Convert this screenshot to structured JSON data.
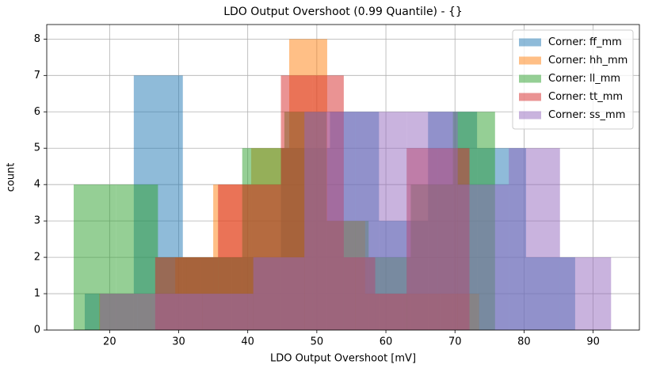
{
  "chart_data": {
    "type": "histogram",
    "title": "LDO Output Overshoot (0.99 Quantile) - {}",
    "xlabel": "LDO Output Overshoot [mV]",
    "ylabel": "count",
    "xlim": [
      10.9,
      96.7
    ],
    "ylim": [
      0,
      8.4
    ],
    "xticks": [
      20,
      30,
      40,
      50,
      60,
      70,
      80,
      90
    ],
    "yticks": [
      0,
      1,
      2,
      3,
      4,
      5,
      6,
      7,
      8
    ],
    "grid": true,
    "opacity": 0.5,
    "legend": "upper-right",
    "series": [
      {
        "name": "Corner: ff_mm",
        "color": "#1f77b4",
        "bins": [
          16.4,
          23.5,
          30.6,
          37.7,
          44.8,
          51.9,
          59.0,
          66.1,
          73.2,
          80.3,
          87.4
        ],
        "values": [
          1,
          7,
          2,
          2,
          5,
          6,
          3,
          6,
          5,
          2
        ]
      },
      {
        "name": "Corner: hh_mm",
        "color": "#ff7f0e",
        "bins": [
          18.5,
          24.0,
          29.5,
          35.0,
          40.5,
          46.0,
          51.5,
          57.0,
          62.5,
          68.0,
          73.5
        ],
        "values": [
          1,
          1,
          2,
          4,
          5,
          8,
          3,
          1,
          1,
          1
        ]
      },
      {
        "name": "Corner: ll_mm",
        "color": "#2ca02c",
        "bins": [
          14.8,
          20.9,
          27.0,
          33.1,
          39.2,
          45.3,
          51.4,
          57.5,
          63.6,
          69.7,
          75.8
        ],
        "values": [
          4,
          4,
          2,
          2,
          5,
          6,
          3,
          2,
          4,
          6
        ]
      },
      {
        "name": "Corner: tt_mm",
        "color": "#d62728",
        "bins": [
          26.6,
          31.15,
          35.7,
          40.25,
          44.8,
          49.35,
          53.9,
          58.45,
          63.0,
          67.55,
          72.1
        ],
        "values": [
          2,
          2,
          4,
          4,
          7,
          7,
          2,
          1,
          5,
          5
        ]
      },
      {
        "name": "Corner: ss_mm",
        "color": "#9467bd",
        "bins": [
          18.6,
          26.0,
          33.4,
          40.8,
          48.2,
          55.6,
          63.0,
          70.4,
          77.8,
          85.2,
          92.6
        ],
        "values": [
          1,
          1,
          1,
          2,
          6,
          6,
          6,
          4,
          5,
          2
        ]
      }
    ]
  }
}
